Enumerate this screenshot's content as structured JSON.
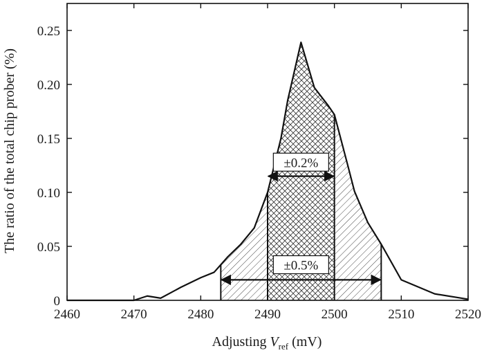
{
  "chart_data": {
    "type": "area",
    "xlabel_prefix": "Adjusting ",
    "xlabel_var": "V",
    "xlabel_sub": "ref",
    "xlabel_unit": " (mV)",
    "ylabel": "The ratio of the total chip prober (%)",
    "xlim": [
      2460,
      2520
    ],
    "ylim": [
      0,
      0.275
    ],
    "xticks": [
      2460,
      2470,
      2480,
      2490,
      2500,
      2510,
      2520
    ],
    "xtick_labels": [
      "2460",
      "2470",
      "2480",
      "2490",
      "2500",
      "2510",
      "2520"
    ],
    "yticks": [
      0,
      0.05,
      0.1,
      0.15,
      0.2,
      0.25
    ],
    "ytick_labels": [
      "0",
      "0.05",
      "0.10",
      "0.15",
      "0.20",
      "0.25"
    ],
    "series": [
      {
        "x": [
          2460,
          2470,
          2472,
          2474,
          2477,
          2480,
          2482,
          2484,
          2486,
          2488,
          2490,
          2492,
          2493,
          2495,
          2497,
          2499,
          2500,
          2502,
          2503,
          2505,
          2507,
          2510,
          2515,
          2520
        ],
        "values": [
          0,
          0,
          0.004,
          0.002,
          0.012,
          0.021,
          0.026,
          0.04,
          0.052,
          0.067,
          0.1,
          0.15,
          0.185,
          0.239,
          0.197,
          0.181,
          0.172,
          0.125,
          0.101,
          0.072,
          0.052,
          0.019,
          0.006,
          0.001
        ]
      }
    ],
    "annotations": [
      {
        "label": "±0.2%",
        "x_start": 2490,
        "x_end": 2500,
        "arrow_y": 0.115,
        "label_y": 0.128
      },
      {
        "label": "±0.5%",
        "x_start": 2483,
        "x_end": 2507,
        "arrow_y": 0.019,
        "label_y": 0.033
      }
    ],
    "grid": false
  }
}
